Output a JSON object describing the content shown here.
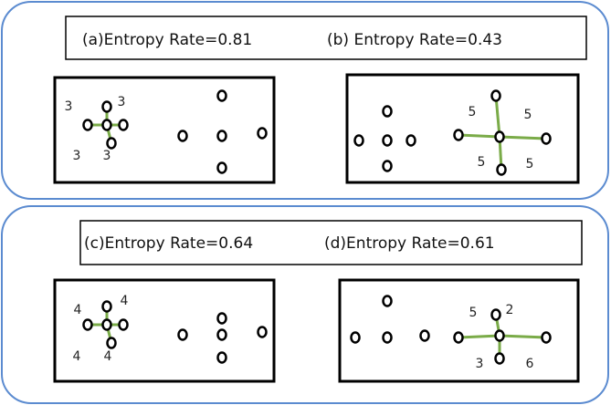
{
  "panels": [
    {
      "title": "(a)Entropy Rate=0.81",
      "edge_labels": [
        3,
        3,
        3,
        3
      ]
    },
    {
      "title": "(b) Entropy Rate=0.43",
      "edge_labels": [
        5,
        5,
        5,
        5
      ]
    },
    {
      "title": "(c)Entropy Rate=0.64",
      "edge_labels": [
        4,
        4,
        4,
        4
      ]
    },
    {
      "title": "(d)Entropy Rate=0.61",
      "edge_labels": [
        5,
        2,
        3,
        6
      ]
    }
  ]
}
